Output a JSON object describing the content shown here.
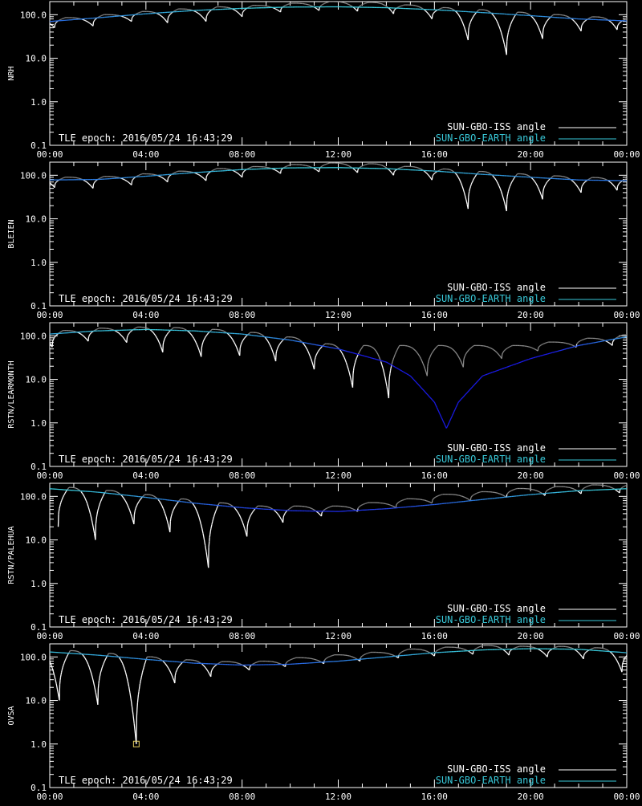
{
  "colors": {
    "background": "#000000",
    "axes": "#ffffff",
    "iss_angle": "#ffffff",
    "iss_angle_faded": "#8a8a8a",
    "earth_angle_high": "#38c8d8",
    "earth_angle_low": "#1a1ae6",
    "marker": "#e8d060"
  },
  "chart_data": [
    {
      "type": "line",
      "ylabel": "NRH",
      "yscale": "log",
      "ylim": [
        0.1,
        200
      ],
      "xlabel": "",
      "xlim": [
        "00:00",
        "24:00"
      ],
      "xticks": [
        "00:00",
        "04:00",
        "08:00",
        "12:00",
        "16:00",
        "20:00",
        "00:00"
      ],
      "yticks": [
        "0.1",
        "1.0",
        "10.0",
        "100.0"
      ],
      "annotation": "TLE epoch: 2016/05/24 16:43:29",
      "legend": [
        "SUN-GBO-ISS angle",
        "SUN-GBO-EARTH angle"
      ],
      "legend_position": "bottom-right",
      "series": [
        {
          "name": "SUN-GBO-EARTH angle",
          "x": [
            0,
            2,
            4,
            6,
            8,
            10,
            12,
            14,
            16,
            18,
            20,
            22,
            24
          ],
          "y": [
            70,
            85,
            105,
            125,
            140,
            150,
            152,
            145,
            130,
            112,
            95,
            80,
            72
          ]
        },
        {
          "name": "SUN-GBO-ISS angle",
          "sunrise_minima": [
            {
              "x": 0.2,
              "y": 50
            },
            {
              "x": 1.8,
              "y": 55
            },
            {
              "x": 3.4,
              "y": 70
            },
            {
              "x": 4.9,
              "y": 65
            },
            {
              "x": 6.5,
              "y": 70
            },
            {
              "x": 8.0,
              "y": 90
            },
            {
              "x": 9.6,
              "y": 115
            },
            {
              "x": 11.2,
              "y": 125
            },
            {
              "x": 12.8,
              "y": 120
            },
            {
              "x": 14.3,
              "y": 105
            },
            {
              "x": 15.9,
              "y": 80
            },
            {
              "x": 17.4,
              "y": 26
            },
            {
              "x": 19.0,
              "y": 12
            },
            {
              "x": 20.5,
              "y": 28
            },
            {
              "x": 22.1,
              "y": 42
            },
            {
              "x": 23.6,
              "y": 45
            }
          ]
        }
      ]
    },
    {
      "type": "line",
      "ylabel": "BLEIEN",
      "yscale": "log",
      "ylim": [
        0.1,
        200
      ],
      "xlabel": "",
      "xlim": [
        "00:00",
        "24:00"
      ],
      "xticks": [
        "00:00",
        "04:00",
        "08:00",
        "12:00",
        "16:00",
        "20:00",
        "00:00"
      ],
      "yticks": [
        "0.1",
        "1.0",
        "10.0",
        "100.0"
      ],
      "annotation": "TLE epoch: 2016/05/24 16:43:29",
      "legend": [
        "SUN-GBO-ISS angle",
        "SUN-GBO-EARTH angle"
      ],
      "legend_position": "bottom-right",
      "series": [
        {
          "name": "SUN-GBO-EARTH angle",
          "x": [
            0,
            2,
            4,
            6,
            8,
            10,
            12,
            14,
            16,
            18,
            20,
            22,
            24
          ],
          "y": [
            78,
            80,
            95,
            115,
            135,
            148,
            150,
            142,
            125,
            105,
            90,
            78,
            75
          ]
        },
        {
          "name": "SUN-GBO-ISS angle",
          "sunrise_minima": [
            {
              "x": 0.2,
              "y": 52
            },
            {
              "x": 1.8,
              "y": 50
            },
            {
              "x": 3.4,
              "y": 60
            },
            {
              "x": 4.9,
              "y": 70
            },
            {
              "x": 6.5,
              "y": 75
            },
            {
              "x": 8.0,
              "y": 90
            },
            {
              "x": 9.6,
              "y": 110
            },
            {
              "x": 11.2,
              "y": 120
            },
            {
              "x": 12.8,
              "y": 115
            },
            {
              "x": 14.3,
              "y": 100
            },
            {
              "x": 15.9,
              "y": 78
            },
            {
              "x": 17.4,
              "y": 17
            },
            {
              "x": 19.0,
              "y": 15
            },
            {
              "x": 20.5,
              "y": 28
            },
            {
              "x": 22.1,
              "y": 40
            },
            {
              "x": 23.6,
              "y": 45
            }
          ]
        }
      ]
    },
    {
      "type": "line",
      "ylabel": "RSTN/LEARMONTH",
      "yscale": "log",
      "ylim": [
        0.1,
        200
      ],
      "xlabel": "",
      "xlim": [
        "00:00",
        "24:00"
      ],
      "xticks": [
        "00:00",
        "04:00",
        "08:00",
        "12:00",
        "16:00",
        "20:00",
        "00:00"
      ],
      "yticks": [
        "0.1",
        "1.0",
        "10.0",
        "100.0"
      ],
      "annotation": "TLE epoch: 2016/05/24 16:43:29",
      "legend": [
        "SUN-GBO-ISS angle",
        "SUN-GBO-EARTH angle"
      ],
      "legend_position": "bottom-right",
      "series": [
        {
          "name": "SUN-GBO-EARTH angle",
          "x": [
            0,
            2,
            4,
            6,
            8,
            10,
            12,
            14,
            15,
            16,
            16.5,
            17,
            18,
            20,
            22,
            24
          ],
          "y": [
            110,
            130,
            140,
            130,
            110,
            80,
            50,
            25,
            12,
            3,
            0.75,
            3,
            12,
            30,
            60,
            95
          ]
        },
        {
          "name": "SUN-GBO-ISS angle",
          "sunrise_minima": [
            {
              "x": 0.1,
              "y": 55
            },
            {
              "x": 1.6,
              "y": 75
            },
            {
              "x": 3.2,
              "y": 70
            },
            {
              "x": 4.7,
              "y": 42
            },
            {
              "x": 6.3,
              "y": 33
            },
            {
              "x": 7.9,
              "y": 35
            },
            {
              "x": 9.4,
              "y": 26
            },
            {
              "x": 11.0,
              "y": 17
            },
            {
              "x": 12.6,
              "y": 6.5
            },
            {
              "x": 14.1,
              "y": 3.7
            },
            {
              "x": 15.7,
              "y": 12
            },
            {
              "x": 17.2,
              "y": 19
            },
            {
              "x": 18.8,
              "y": 30
            },
            {
              "x": 20.3,
              "y": 45
            },
            {
              "x": 21.9,
              "y": 55
            },
            {
              "x": 23.4,
              "y": 60
            }
          ]
        }
      ]
    },
    {
      "type": "line",
      "ylabel": "RSTN/PALEHUA",
      "yscale": "log",
      "ylim": [
        0.1,
        200
      ],
      "xlabel": "",
      "xlim": [
        "00:00",
        "24:00"
      ],
      "xticks": [
        "00:00",
        "04:00",
        "08:00",
        "12:00",
        "16:00",
        "20:00",
        "00:00"
      ],
      "yticks": [
        "0.1",
        "1.0",
        "10.0",
        "100.0"
      ],
      "annotation": "TLE epoch: 2016/05/24 16:43:29",
      "legend": [
        "SUN-GBO-ISS angle",
        "SUN-GBO-EARTH angle"
      ],
      "legend_position": "bottom-right",
      "series": [
        {
          "name": "SUN-GBO-EARTH angle",
          "x": [
            0,
            2,
            4,
            6,
            8,
            10,
            12,
            14,
            16,
            18,
            20,
            22,
            24
          ],
          "y": [
            150,
            125,
            95,
            70,
            55,
            47,
            45,
            52,
            65,
            85,
            110,
            135,
            150
          ]
        },
        {
          "name": "SUN-GBO-ISS angle",
          "sunrise_minima": [
            {
              "x": 1.9,
              "y": 10
            },
            {
              "x": 3.5,
              "y": 23
            },
            {
              "x": 5.0,
              "y": 15
            },
            {
              "x": 6.6,
              "y": 2.3
            },
            {
              "x": 8.2,
              "y": 12
            },
            {
              "x": 9.7,
              "y": 25
            },
            {
              "x": 11.3,
              "y": 35
            },
            {
              "x": 12.8,
              "y": 45
            },
            {
              "x": 14.4,
              "y": 55
            },
            {
              "x": 15.9,
              "y": 70
            },
            {
              "x": 17.5,
              "y": 80
            },
            {
              "x": 19.0,
              "y": 95
            },
            {
              "x": 20.6,
              "y": 105
            },
            {
              "x": 22.1,
              "y": 115
            },
            {
              "x": 23.7,
              "y": 120
            }
          ]
        }
      ]
    },
    {
      "type": "line",
      "ylabel": "OVSA",
      "yscale": "log",
      "ylim": [
        0.1,
        200
      ],
      "xlabel": "",
      "xlim": [
        "00:00",
        "24:00"
      ],
      "xticks": [
        "00:00",
        "04:00",
        "08:00",
        "12:00",
        "16:00",
        "20:00",
        "00:00"
      ],
      "yticks": [
        "0.1",
        "1.0",
        "10.0",
        "100.0"
      ],
      "annotation": "TLE epoch: 2016/05/24 16:43:29",
      "legend": [
        "SUN-GBO-ISS angle",
        "SUN-GBO-EARTH angle"
      ],
      "legend_position": "bottom-right",
      "marker": {
        "x": 3.6,
        "y": 1.0
      },
      "series": [
        {
          "name": "SUN-GBO-EARTH angle",
          "x": [
            0,
            2,
            4,
            6,
            8,
            10,
            12,
            14,
            16,
            18,
            20,
            22,
            24
          ],
          "y": [
            130,
            110,
            88,
            72,
            65,
            68,
            80,
            100,
            125,
            145,
            155,
            150,
            125
          ]
        },
        {
          "name": "SUN-GBO-ISS angle",
          "sunrise_minima": [
            {
              "x": 0.4,
              "y": 10
            },
            {
              "x": 2.0,
              "y": 8
            },
            {
              "x": 3.6,
              "y": 1.0
            },
            {
              "x": 5.2,
              "y": 25
            },
            {
              "x": 6.7,
              "y": 35
            },
            {
              "x": 8.3,
              "y": 50
            },
            {
              "x": 9.8,
              "y": 60
            },
            {
              "x": 11.4,
              "y": 70
            },
            {
              "x": 12.9,
              "y": 80
            },
            {
              "x": 14.5,
              "y": 95
            },
            {
              "x": 16.0,
              "y": 105
            },
            {
              "x": 17.6,
              "y": 115
            },
            {
              "x": 19.1,
              "y": 110
            },
            {
              "x": 20.7,
              "y": 100
            },
            {
              "x": 22.2,
              "y": 90
            },
            {
              "x": 23.8,
              "y": 45
            }
          ]
        }
      ]
    }
  ]
}
